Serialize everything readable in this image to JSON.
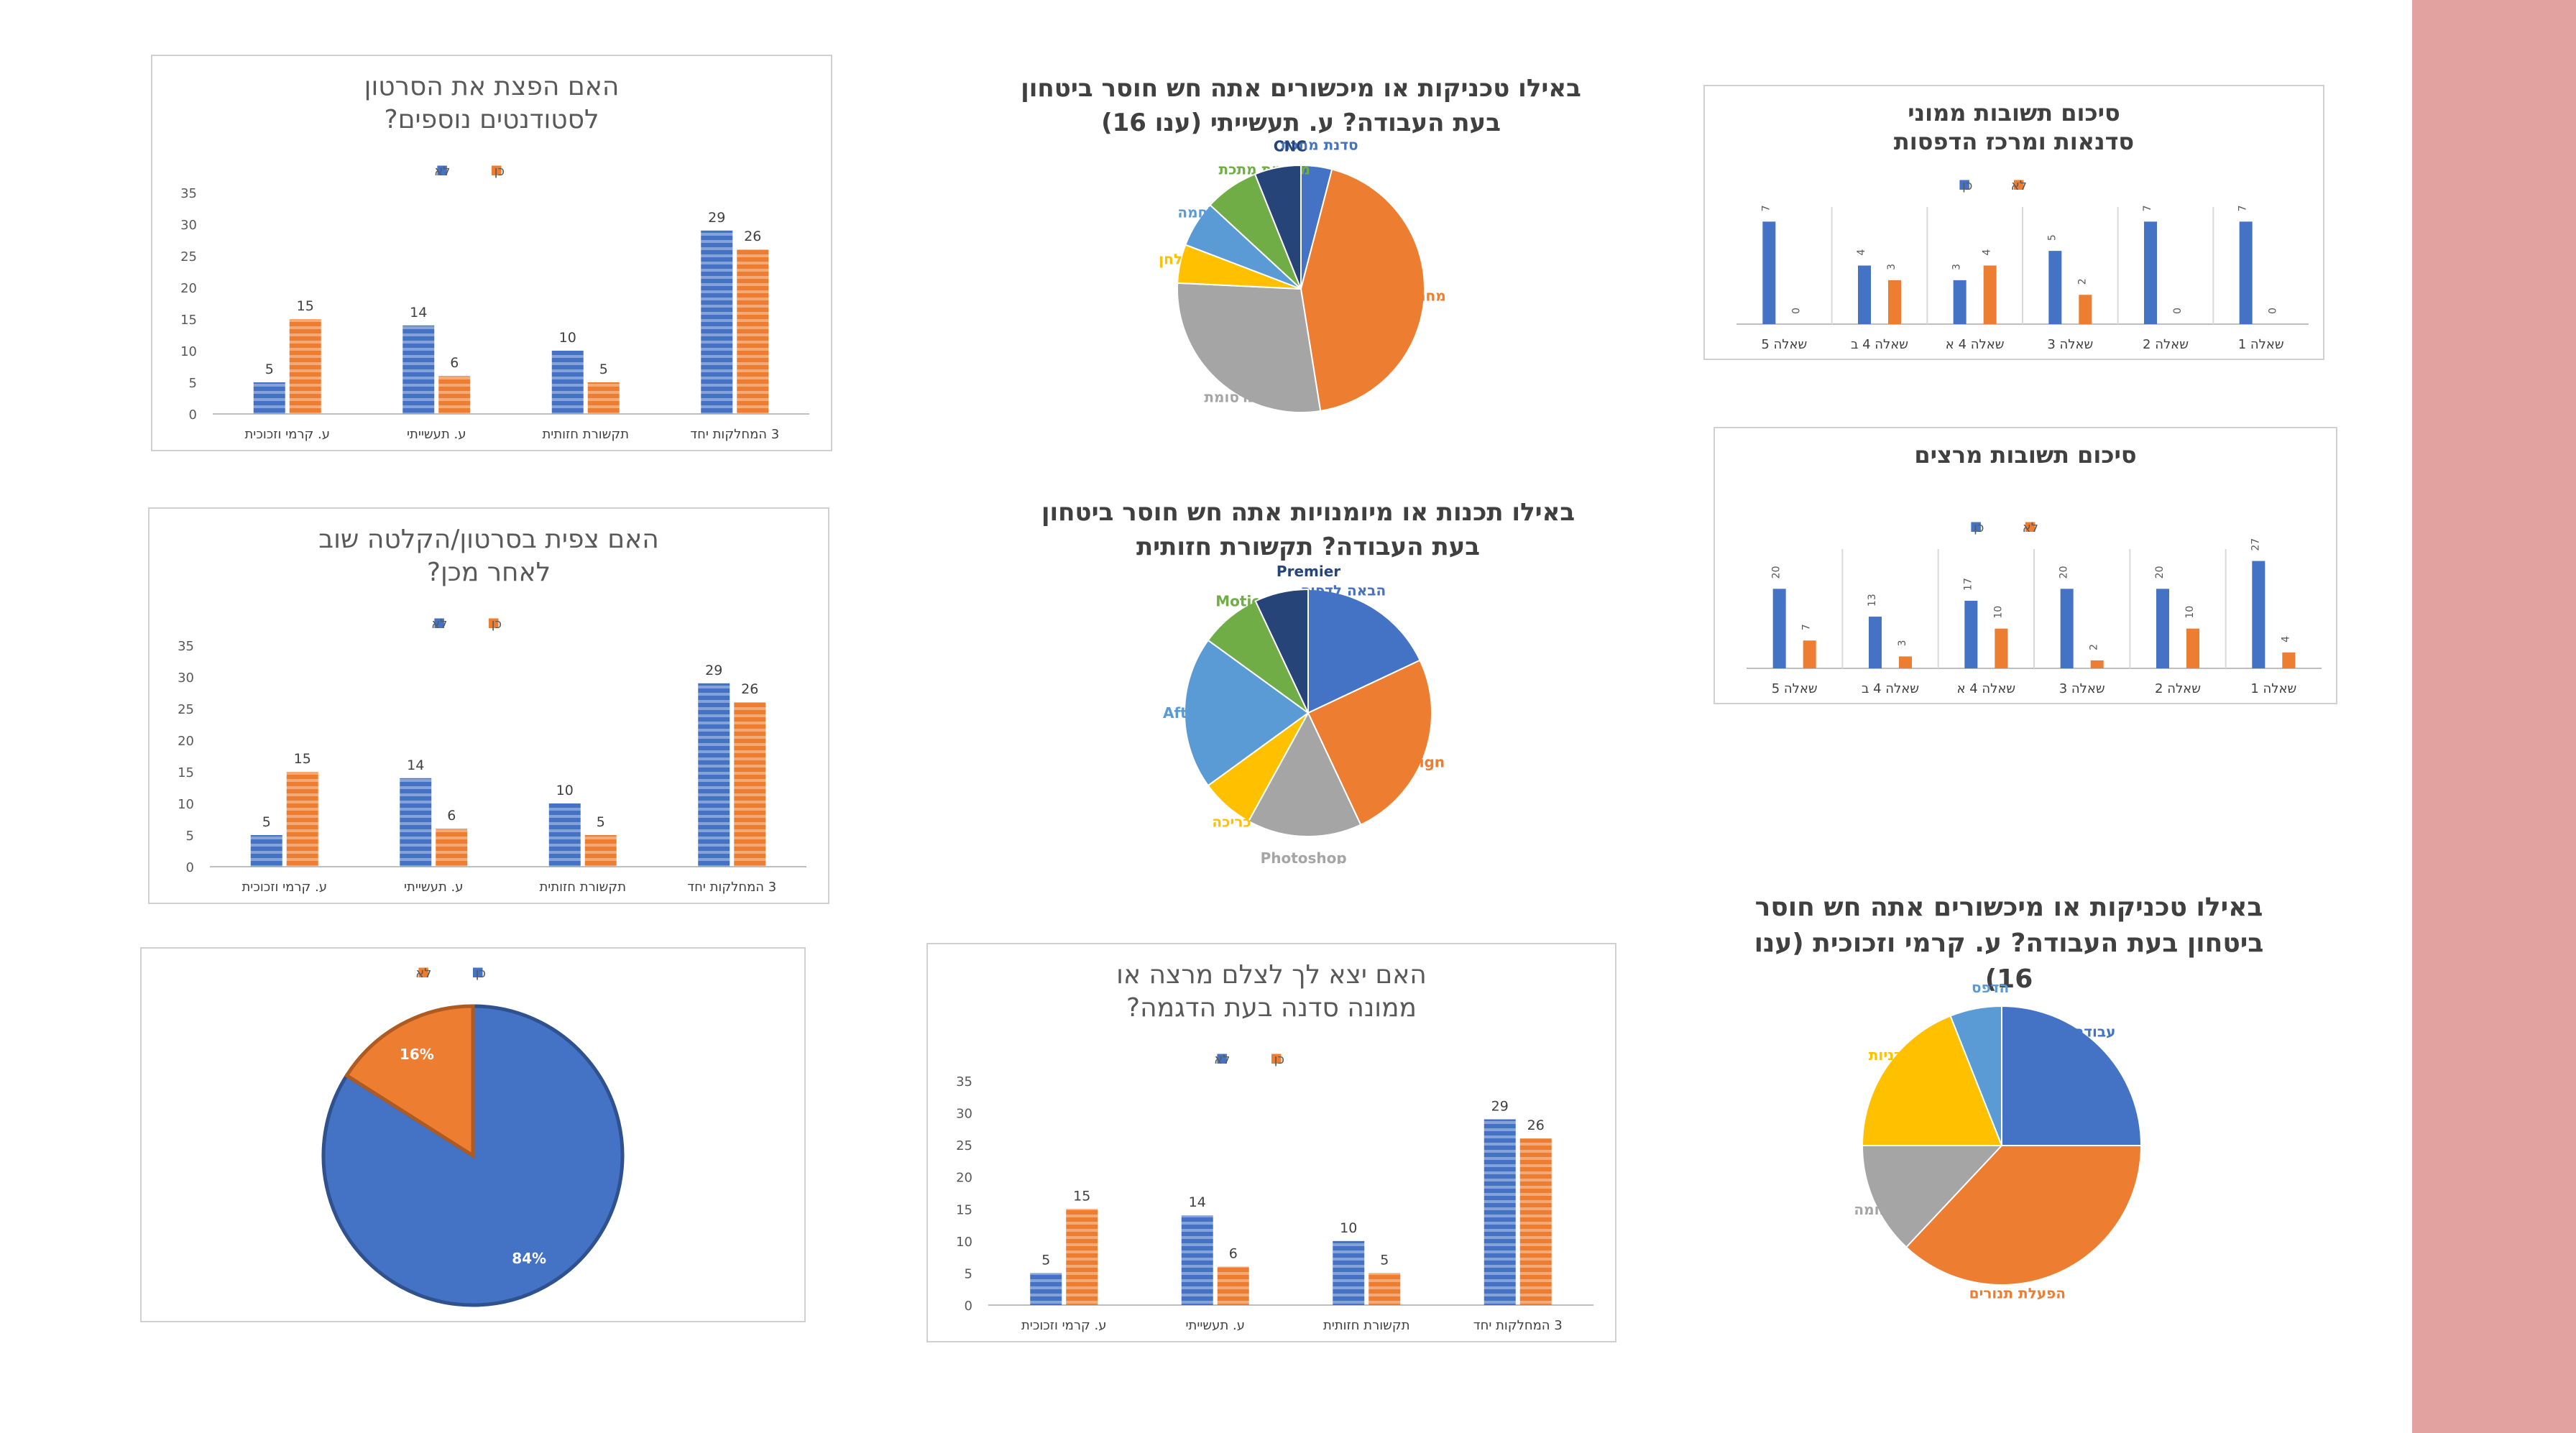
{
  "colors": {
    "blue": "#4472c4",
    "orange": "#ed7d31",
    "gray": "#a5a5a5",
    "yellow": "#ffc000",
    "lightblue": "#5b9bd5",
    "green": "#70ad47",
    "navy": "#264478",
    "axis": "#595959",
    "strip": "#e2a29f"
  },
  "chart_data": [
    {
      "id": "bar1",
      "type": "bar",
      "title": "האם הפצת את הסרטון לסטודנטים נוספים?",
      "categories": [
        "ע. קרמי וזכוכית",
        "ע. תעשייתי",
        "תקשורת חזותית",
        "3 המחלקות יחד"
      ],
      "series": [
        {
          "name": "לא",
          "values": [
            5,
            14,
            10,
            29
          ]
        },
        {
          "name": "כן",
          "values": [
            15,
            6,
            5,
            26
          ]
        }
      ],
      "yticks": [
        "0",
        "5",
        "10",
        "15",
        "20",
        "25",
        "30",
        "35"
      ],
      "ylim": [
        0,
        35
      ],
      "legend": "top"
    },
    {
      "id": "bar2",
      "type": "bar",
      "title": "האם צפית בסרטון/הקלטה שוב לאחר מכן?",
      "categories": [
        "ע. קרמי וזכוכית",
        "ע. תעשייתי",
        "תקשורת חזותית",
        "3 המחלקות יחד"
      ],
      "series": [
        {
          "name": "לא",
          "values": [
            5,
            14,
            10,
            29
          ]
        },
        {
          "name": "כן",
          "values": [
            15,
            6,
            5,
            26
          ]
        }
      ],
      "yticks": [
        "0",
        "5",
        "10",
        "15",
        "20",
        "25",
        "30",
        "35"
      ],
      "ylim": [
        0,
        35
      ],
      "legend": "top"
    },
    {
      "id": "pie1",
      "type": "pie",
      "title": "",
      "slices": [
        {
          "label": "כן",
          "value": 84,
          "display": "84%"
        },
        {
          "label": "לא",
          "value": 16,
          "display": "16%"
        }
      ],
      "legend": "top"
    },
    {
      "id": "pie2",
      "type": "pie",
      "title": "באילו טכניקות או מיכשורים אתה חש חוסר ביטחון בעת העבודה? ע. תעשייתי (ענו 16)",
      "slices": [
        {
          "label": "סדנת מתכת",
          "value": 4
        },
        {
          "label": "מחרטה",
          "value": 43
        },
        {
          "label": "כרסומת",
          "value": 28
        },
        {
          "label": "מסור שולחן",
          "value": 5
        },
        {
          "label": "הלחמה",
          "value": 6
        },
        {
          "label": "מחרטת מתכת",
          "value": 7
        },
        {
          "label": "CNC",
          "value": 6
        }
      ]
    },
    {
      "id": "pie3",
      "type": "pie",
      "title": "באילו תכנות או מיומנויות אתה חש חוסר ביטחון בעת העבודה? תקשורת חזותית",
      "slices": [
        {
          "label": "הבאה לדפוס",
          "value": 18
        },
        {
          "label": "Indesign",
          "value": 25
        },
        {
          "label": "Photoshop",
          "value": 15
        },
        {
          "label": "כריכה",
          "value": 7
        },
        {
          "label": "After Effects",
          "value": 20
        },
        {
          "label": "Motion",
          "value": 8
        },
        {
          "label": "Premier",
          "value": 7
        }
      ]
    },
    {
      "id": "bar3",
      "type": "bar",
      "title": "האם יצא לך לצלם מרצה או ממונה סדנה בעת הדגמה?",
      "categories": [
        "ע. קרמי וזכוכית",
        "ע. תעשייתי",
        "תקשורת חזותית",
        "3 המחלקות יחד"
      ],
      "series": [
        {
          "name": "לא",
          "values": [
            5,
            14,
            10,
            29
          ]
        },
        {
          "name": "כן",
          "values": [
            15,
            6,
            5,
            26
          ]
        }
      ],
      "yticks": [
        "0",
        "5",
        "10",
        "15",
        "20",
        "25",
        "30",
        "35"
      ],
      "ylim": [
        0,
        35
      ],
      "legend": "top"
    },
    {
      "id": "bar4",
      "type": "bar",
      "title": "סיכום תשובות ממוני סדנאות ומרכז הדפסות",
      "categories": [
        "שאלה 5",
        "שאלה 4 ב",
        "שאלה 4 א",
        "שאלה 3",
        "שאלה 2",
        "שאלה 1"
      ],
      "series": [
        {
          "name": "כן",
          "values": [
            7,
            4,
            3,
            5,
            7,
            7
          ]
        },
        {
          "name": "לא",
          "values": [
            0,
            3,
            4,
            2,
            0,
            0
          ]
        }
      ],
      "ylim": [
        0,
        8
      ],
      "legend": "top"
    },
    {
      "id": "bar5",
      "type": "bar",
      "title": "סיכום תשובות מרצים",
      "categories": [
        "שאלה 5",
        "שאלה 4 ב",
        "שאלה 4 א",
        "שאלה 3",
        "שאלה 2",
        "שאלה 1"
      ],
      "series": [
        {
          "name": "כן",
          "values": [
            20,
            13,
            17,
            20,
            20,
            27
          ]
        },
        {
          "name": "לא",
          "values": [
            7,
            3,
            10,
            2,
            10,
            4
          ]
        }
      ],
      "ylim": [
        0,
        30
      ],
      "legend": "top"
    },
    {
      "id": "pie4",
      "type": "pie",
      "title": "באילו טכניקות או מיכשורים אתה חש חוסר ביטחון בעת העבודה? ע. קרמי וזכוכית (ענו 16)",
      "slices": [
        {
          "label": "עבודה קרה",
          "value": 25
        },
        {
          "label": "הפעלת תנורים",
          "value": 37
        },
        {
          "label": "סדנה חמה",
          "value": 13
        },
        {
          "label": "ח. גבס ותבניות",
          "value": 19
        },
        {
          "label": "הדפס",
          "value": 6
        }
      ]
    }
  ]
}
